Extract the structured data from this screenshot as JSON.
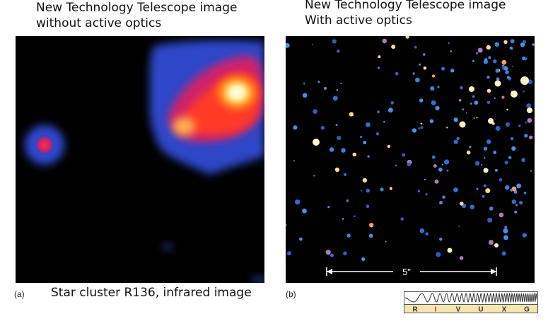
{
  "captions": {
    "left_line1": "New Technology Telescope image",
    "left_line2": "without active optics",
    "right_line1": "New Technology Telescope image",
    "right_line2": "With active optics",
    "bottom_left": "Star cluster R136, infrared image"
  },
  "panels": {
    "a_label": "(a)",
    "b_label": "(b)",
    "scale_label": "5\""
  },
  "spectrum_bands": [
    "R",
    "I",
    "V",
    "U",
    "X",
    "G"
  ],
  "colors": {
    "background": "#000000",
    "highlight_band": "#e02020",
    "band_strip": "#f3e6b0"
  }
}
